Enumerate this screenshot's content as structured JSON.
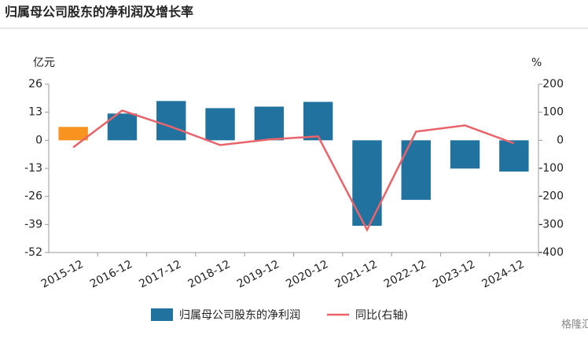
{
  "chart_data": {
    "type": "bar_line",
    "title": "归属母公司股东的净利润及增长率",
    "y_label": "亿元",
    "y2_label": "%",
    "categories": [
      "2015-12",
      "2016-12",
      "2017-12",
      "2018-12",
      "2019-12",
      "2020-12",
      "2021-12",
      "2022-12",
      "2023-12",
      "2024-12"
    ],
    "series": [
      {
        "name": "归属母公司股东的净利润",
        "type": "bar",
        "color": "#21729f",
        "colors": [
          "#f7931e",
          "#21729f",
          "#21729f",
          "#21729f",
          "#21729f",
          "#21729f",
          "#21729f",
          "#21729f",
          "#21729f",
          "#21729f"
        ],
        "values": [
          6.2,
          12.4,
          18.2,
          14.9,
          15.6,
          17.8,
          -39.6,
          -27.6,
          -13.1,
          -14.5
        ]
      },
      {
        "name": "同比(右轴)",
        "type": "line",
        "color": "#e8646a",
        "axis": "y2",
        "values": [
          -25,
          106,
          48,
          -17,
          3,
          14,
          -319,
          31,
          53,
          -11
        ]
      }
    ],
    "ylim": [
      -52,
      26
    ],
    "yticks": [
      -52,
      -39,
      -26,
      -13,
      0,
      13,
      26
    ],
    "y2lim": [
      -400,
      200
    ],
    "y2ticks": [
      -400,
      -300,
      -200,
      -100,
      0,
      100,
      200
    ],
    "watermark": "格隆汇"
  }
}
